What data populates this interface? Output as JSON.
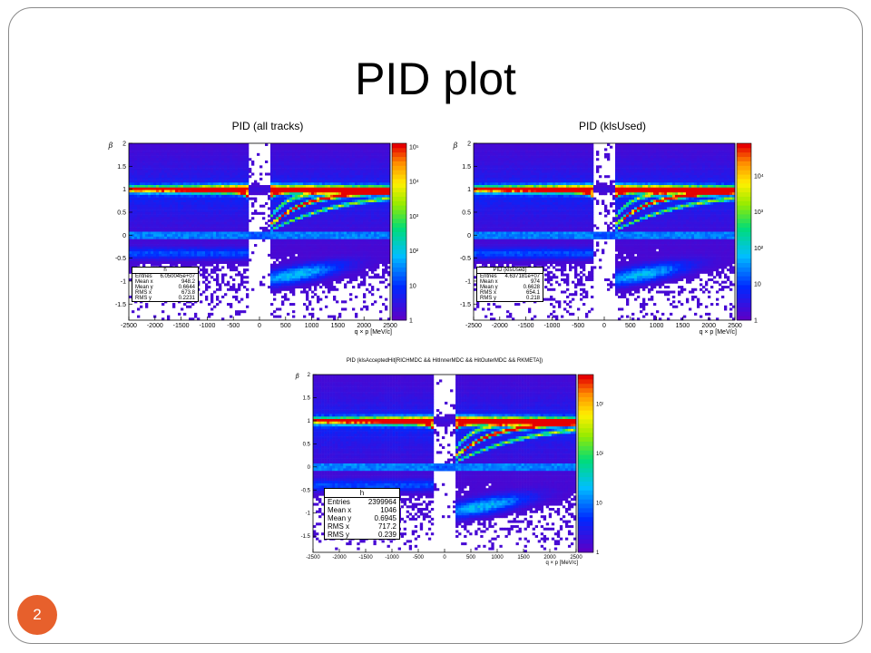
{
  "slide": {
    "title": "PID plot",
    "page_number": "2"
  },
  "colors": {
    "accent": "#e7602c",
    "border": "#8a8a8a"
  },
  "chart_data": [
    {
      "type": "heatmap",
      "title": "PID (all tracks)",
      "xlabel": "q × p [MeV/c]",
      "ylabel": "β",
      "xlim": [
        -2500,
        2500
      ],
      "ylim": [
        -1.85,
        2
      ],
      "x_ticks": [
        -2500,
        -2000,
        -1500,
        -1000,
        -500,
        0,
        500,
        1000,
        1500,
        2000,
        2500
      ],
      "y_ticks": [
        2,
        1.5,
        1,
        0.5,
        0,
        -0.5,
        -1,
        -1.5
      ],
      "color_scale": "log",
      "colorbar_ticks": [
        {
          "v": 5,
          "label": "10⁵"
        },
        {
          "v": 4,
          "label": "10⁴"
        },
        {
          "v": 3,
          "label": "10³"
        },
        {
          "v": 2,
          "label": "10²"
        },
        {
          "v": 1,
          "label": "10"
        },
        {
          "v": 0,
          "label": "1"
        }
      ],
      "colorbar_max_exp": 5.1,
      "stats": {
        "title": "h",
        "rows": [
          {
            "name": "Entries",
            "value": "6.050045e+07"
          },
          {
            "name": "Mean x",
            "value": "948.2"
          },
          {
            "name": "Mean y",
            "value": "0.6644"
          },
          {
            "name": "RMS x",
            "value": "673.8"
          },
          {
            "name": "RMS y",
            "value": "0.2231"
          }
        ]
      }
    },
    {
      "type": "heatmap",
      "title": "PID (klsUsed)",
      "xlabel": "q × p [MeV/c]",
      "ylabel": "β",
      "xlim": [
        -2500,
        2500
      ],
      "ylim": [
        -1.85,
        2
      ],
      "x_ticks": [
        -2500,
        -2000,
        -1500,
        -1000,
        -500,
        0,
        500,
        1000,
        1500,
        2000,
        2500
      ],
      "y_ticks": [
        2,
        1.5,
        1,
        0.5,
        0,
        -0.5,
        -1,
        -1.5
      ],
      "color_scale": "log",
      "colorbar_ticks": [
        {
          "v": 4,
          "label": "10⁴"
        },
        {
          "v": 3,
          "label": "10³"
        },
        {
          "v": 2,
          "label": "10²"
        },
        {
          "v": 1,
          "label": "10"
        },
        {
          "v": 0,
          "label": "1"
        }
      ],
      "colorbar_max_exp": 4.9,
      "stats": {
        "title": "PID (klsUsed)",
        "rows": [
          {
            "name": "Entries",
            "value": "4.637181e+07"
          },
          {
            "name": "Mean x",
            "value": "974"
          },
          {
            "name": "Mean y",
            "value": "0.6628"
          },
          {
            "name": "RMS x",
            "value": "654.1"
          },
          {
            "name": "RMS y",
            "value": "0.218"
          }
        ]
      }
    },
    {
      "type": "heatmap",
      "title": "PID (klsAcceptedHit[RICHMDC && HitInnerMDC && HitOuterMDC && RKMETA])",
      "xlabel": "q × p [MeV/c]",
      "ylabel": "β",
      "xlim": [
        -2500,
        2500
      ],
      "ylim": [
        -1.85,
        2
      ],
      "x_ticks": [
        -2500,
        -2000,
        -1500,
        -1000,
        -500,
        0,
        500,
        1000,
        1500,
        2000,
        2500
      ],
      "y_ticks": [
        2,
        1.5,
        1,
        0.5,
        0,
        -0.5,
        -1,
        -1.5
      ],
      "color_scale": "log",
      "colorbar_ticks": [
        {
          "v": 3,
          "label": "10³"
        },
        {
          "v": 2,
          "label": "10²"
        },
        {
          "v": 1,
          "label": "10"
        },
        {
          "v": 0,
          "label": "1"
        }
      ],
      "colorbar_max_exp": 3.6,
      "stats": {
        "title": "h",
        "rows": [
          {
            "name": "Entries",
            "value": "2399964"
          },
          {
            "name": "Mean x",
            "value": "1046"
          },
          {
            "name": "Mean y",
            "value": "0.6945"
          },
          {
            "name": "RMS x",
            "value": "717.2"
          },
          {
            "name": "RMS y",
            "value": "0.239"
          }
        ]
      }
    }
  ]
}
